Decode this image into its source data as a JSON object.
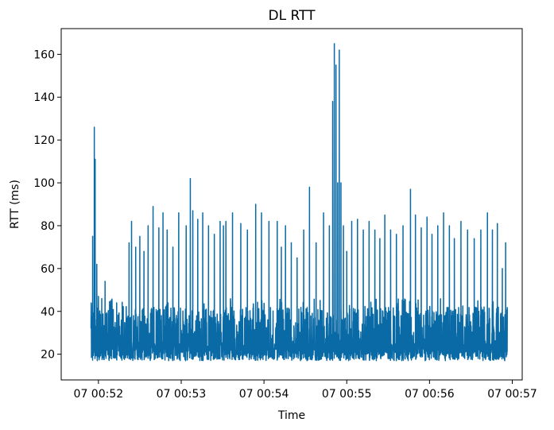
{
  "chart_data": {
    "type": "line",
    "title": "DL RTT",
    "xlabel": "Time",
    "ylabel": "RTT (ms)",
    "x_ticks": [
      {
        "minute": 52,
        "label": "07 00:52"
      },
      {
        "minute": 53,
        "label": "07 00:53"
      },
      {
        "minute": 54,
        "label": "07 00:54"
      },
      {
        "minute": 55,
        "label": "07 00:55"
      },
      {
        "minute": 56,
        "label": "07 00:56"
      },
      {
        "minute": 57,
        "label": "07 00:57"
      }
    ],
    "y_ticks": [
      20,
      40,
      60,
      80,
      100,
      120,
      140,
      160
    ],
    "xlim_minutes": [
      51.55,
      57.12
    ],
    "ylim": [
      8,
      172
    ],
    "grid": false,
    "series": [
      {
        "color": "#0a6aa6",
        "baseline_range": [
          16,
          38
        ],
        "spikes": [
          {
            "t": 51.93,
            "v": 75
          },
          {
            "t": 51.95,
            "v": 126
          },
          {
            "t": 51.96,
            "v": 111
          },
          {
            "t": 51.98,
            "v": 62
          },
          {
            "t": 52.0,
            "v": 47
          },
          {
            "t": 52.04,
            "v": 46
          },
          {
            "t": 52.08,
            "v": 54
          },
          {
            "t": 52.15,
            "v": 45
          },
          {
            "t": 52.22,
            "v": 44
          },
          {
            "t": 52.3,
            "v": 42
          },
          {
            "t": 52.37,
            "v": 72
          },
          {
            "t": 52.4,
            "v": 82
          },
          {
            "t": 52.45,
            "v": 70
          },
          {
            "t": 52.5,
            "v": 75
          },
          {
            "t": 52.55,
            "v": 68
          },
          {
            "t": 52.6,
            "v": 80
          },
          {
            "t": 52.66,
            "v": 89
          },
          {
            "t": 52.73,
            "v": 79
          },
          {
            "t": 52.78,
            "v": 86
          },
          {
            "t": 52.83,
            "v": 78
          },
          {
            "t": 52.9,
            "v": 70
          },
          {
            "t": 52.97,
            "v": 86
          },
          {
            "t": 53.06,
            "v": 80
          },
          {
            "t": 53.11,
            "v": 102
          },
          {
            "t": 53.14,
            "v": 87
          },
          {
            "t": 53.2,
            "v": 83
          },
          {
            "t": 53.26,
            "v": 86
          },
          {
            "t": 53.33,
            "v": 80
          },
          {
            "t": 53.4,
            "v": 76
          },
          {
            "t": 53.47,
            "v": 82
          },
          {
            "t": 53.51,
            "v": 80
          },
          {
            "t": 53.54,
            "v": 82
          },
          {
            "t": 53.62,
            "v": 86
          },
          {
            "t": 53.72,
            "v": 81
          },
          {
            "t": 53.8,
            "v": 78
          },
          {
            "t": 53.9,
            "v": 90
          },
          {
            "t": 53.97,
            "v": 86
          },
          {
            "t": 54.06,
            "v": 82
          },
          {
            "t": 54.16,
            "v": 82
          },
          {
            "t": 54.21,
            "v": 70
          },
          {
            "t": 54.26,
            "v": 80
          },
          {
            "t": 54.33,
            "v": 72
          },
          {
            "t": 54.4,
            "v": 65
          },
          {
            "t": 54.48,
            "v": 78
          },
          {
            "t": 54.55,
            "v": 98
          },
          {
            "t": 54.63,
            "v": 72
          },
          {
            "t": 54.72,
            "v": 86
          },
          {
            "t": 54.79,
            "v": 80
          },
          {
            "t": 54.83,
            "v": 138
          },
          {
            "t": 54.85,
            "v": 165
          },
          {
            "t": 54.87,
            "v": 155
          },
          {
            "t": 54.89,
            "v": 100
          },
          {
            "t": 54.91,
            "v": 162
          },
          {
            "t": 54.93,
            "v": 100
          },
          {
            "t": 54.96,
            "v": 80
          },
          {
            "t": 55.0,
            "v": 68
          },
          {
            "t": 55.06,
            "v": 82
          },
          {
            "t": 55.13,
            "v": 83
          },
          {
            "t": 55.2,
            "v": 78
          },
          {
            "t": 55.27,
            "v": 82
          },
          {
            "t": 55.34,
            "v": 78
          },
          {
            "t": 55.4,
            "v": 74
          },
          {
            "t": 55.46,
            "v": 85
          },
          {
            "t": 55.53,
            "v": 78
          },
          {
            "t": 55.6,
            "v": 76
          },
          {
            "t": 55.68,
            "v": 80
          },
          {
            "t": 55.77,
            "v": 97
          },
          {
            "t": 55.83,
            "v": 85
          },
          {
            "t": 55.9,
            "v": 79
          },
          {
            "t": 55.97,
            "v": 84
          },
          {
            "t": 56.03,
            "v": 76
          },
          {
            "t": 56.1,
            "v": 80
          },
          {
            "t": 56.17,
            "v": 86
          },
          {
            "t": 56.24,
            "v": 80
          },
          {
            "t": 56.3,
            "v": 74
          },
          {
            "t": 56.38,
            "v": 82
          },
          {
            "t": 56.46,
            "v": 78
          },
          {
            "t": 56.54,
            "v": 74
          },
          {
            "t": 56.62,
            "v": 78
          },
          {
            "t": 56.7,
            "v": 86
          },
          {
            "t": 56.76,
            "v": 78
          },
          {
            "t": 56.82,
            "v": 81
          },
          {
            "t": 56.88,
            "v": 60
          },
          {
            "t": 56.92,
            "v": 72
          }
        ]
      }
    ]
  }
}
